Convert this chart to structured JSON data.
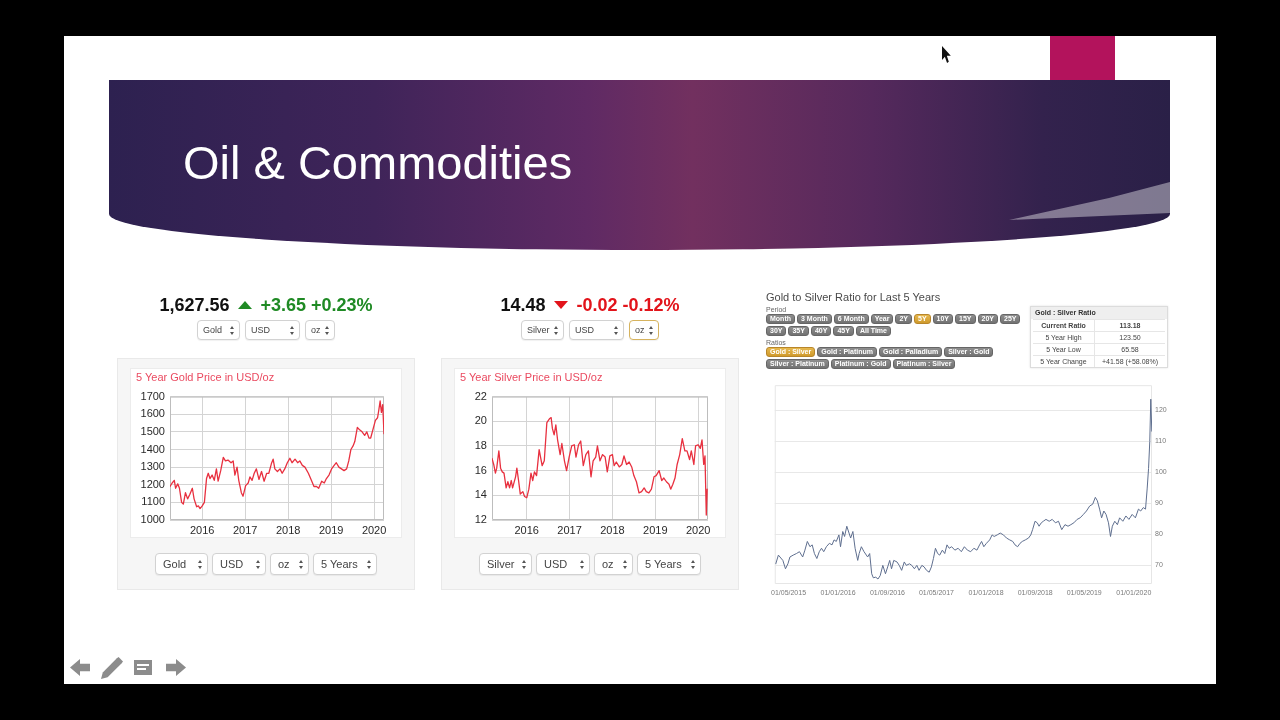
{
  "chart_data": [
    {
      "type": "other",
      "title": "Oil & Commodities"
    },
    {
      "type": "line",
      "title": "5 Year Gold Price in USD/oz",
      "annotations": [
        "1,627.56",
        "+3.65 +0.23%",
        "Gold",
        "USD",
        "oz",
        "Gold",
        "USD",
        "oz",
        "5 Years"
      ],
      "x": [
        2015.25,
        2015.3,
        2015.35,
        2015.38,
        2015.43,
        2015.47,
        2015.52,
        2015.56,
        2015.61,
        2015.66,
        2015.71,
        2015.77,
        2015.81,
        2015.87,
        2015.91,
        2015.95,
        2016.0,
        2016.05,
        2016.1,
        2016.14,
        2016.18,
        2016.23,
        2016.28,
        2016.33,
        2016.37,
        2016.43,
        2016.49,
        2016.54,
        2016.6,
        2016.67,
        2016.72,
        2016.76,
        2016.81,
        2016.85,
        2016.91,
        2016.95,
        2017.01,
        2017.07,
        2017.11,
        2017.16,
        2017.21,
        2017.26,
        2017.32,
        2017.38,
        2017.44,
        2017.5,
        2017.55,
        2017.61,
        2017.65,
        2017.69,
        2017.75,
        2017.81,
        2017.86,
        2017.92,
        2017.98,
        2018.04,
        2018.09,
        2018.16,
        2018.22,
        2018.27,
        2018.33,
        2018.39,
        2018.47,
        2018.54,
        2018.6,
        2018.66,
        2018.71,
        2018.78,
        2018.84,
        2018.89,
        2018.95,
        2019.01,
        2019.07,
        2019.12,
        2019.18,
        2019.24,
        2019.3,
        2019.36,
        2019.41,
        2019.46,
        2019.51,
        2019.55,
        2019.61,
        2019.67,
        2019.72,
        2019.78,
        2019.83,
        2019.88,
        2019.92,
        2019.98,
        2020.03,
        2020.08,
        2020.11,
        2020.14,
        2020.17,
        2020.2,
        2020.23
      ],
      "series": [
        {
          "color": "#e8303f",
          "values": [
            1190,
            1210,
            1225,
            1180,
            1205,
            1180,
            1100,
            1090,
            1155,
            1120,
            1145,
            1180,
            1120,
            1075,
            1080,
            1065,
            1080,
            1100,
            1235,
            1265,
            1235,
            1255,
            1225,
            1290,
            1220,
            1280,
            1355,
            1335,
            1340,
            1325,
            1335,
            1255,
            1300,
            1225,
            1155,
            1135,
            1195,
            1210,
            1245,
            1225,
            1265,
            1290,
            1230,
            1275,
            1220,
            1265,
            1265,
            1320,
            1345,
            1290,
            1275,
            1290,
            1265,
            1290,
            1325,
            1350,
            1325,
            1345,
            1325,
            1335,
            1310,
            1300,
            1265,
            1225,
            1190,
            1190,
            1180,
            1220,
            1210,
            1235,
            1255,
            1290,
            1310,
            1325,
            1300,
            1290,
            1280,
            1290,
            1335,
            1400,
            1420,
            1445,
            1525,
            1510,
            1500,
            1480,
            1500,
            1465,
            1465,
            1520,
            1565,
            1580,
            1625,
            1675,
            1610,
            1655,
            1490
          ]
        }
      ],
      "xlim": [
        2015.25,
        2020.23
      ],
      "xticks": [
        2016,
        2017,
        2018,
        2019,
        2020
      ],
      "ylim": [
        1000,
        1700
      ],
      "yticks": [
        1000,
        1100,
        1200,
        1300,
        1400,
        1500,
        1600,
        1700
      ],
      "grid": true
    },
    {
      "type": "line",
      "title": "5 Year Silver Price in USD/oz",
      "annotations": [
        "14.48",
        "-0.02 -0.12%",
        "Silver",
        "USD",
        "oz",
        "Silver",
        "USD",
        "oz",
        "5 Years"
      ],
      "x": [
        2015.19,
        2015.23,
        2015.27,
        2015.3,
        2015.35,
        2015.39,
        2015.43,
        2015.47,
        2015.52,
        2015.56,
        2015.6,
        2015.64,
        2015.67,
        2015.74,
        2015.77,
        2015.81,
        2015.85,
        2015.91,
        2015.95,
        2016.0,
        2016.05,
        2016.1,
        2016.14,
        2016.18,
        2016.23,
        2016.29,
        2016.36,
        2016.41,
        2016.47,
        2016.53,
        2016.57,
        2016.6,
        2016.64,
        2016.68,
        2016.72,
        2016.78,
        2016.82,
        2016.88,
        2016.93,
        2016.99,
        2017.05,
        2017.11,
        2017.15,
        2017.21,
        2017.26,
        2017.32,
        2017.38,
        2017.44,
        2017.5,
        2017.55,
        2017.61,
        2017.65,
        2017.71,
        2017.77,
        2017.83,
        2017.88,
        2017.94,
        2018.0,
        2018.04,
        2018.09,
        2018.16,
        2018.22,
        2018.27,
        2018.33,
        2018.39,
        2018.45,
        2018.5,
        2018.56,
        2018.62,
        2018.68,
        2018.74,
        2018.79,
        2018.85,
        2018.91,
        2018.97,
        2019.02,
        2019.09,
        2019.15,
        2019.2,
        2019.26,
        2019.32,
        2019.36,
        2019.41,
        2019.46,
        2019.51,
        2019.57,
        2019.63,
        2019.69,
        2019.74,
        2019.8,
        2019.84,
        2019.9,
        2019.94,
        2020.0,
        2020.05,
        2020.09,
        2020.13,
        2020.16,
        2020.19,
        2020.21
      ],
      "series": [
        {
          "color": "#e8303f",
          "values": [
            17.0,
            16.5,
            15.8,
            16.2,
            17.6,
            16.2,
            15.9,
            15.8,
            14.6,
            15.1,
            14.6,
            15.2,
            14.6,
            15.5,
            16.2,
            15.2,
            14.1,
            14.3,
            13.9,
            13.8,
            14.5,
            15.8,
            15.2,
            15.9,
            15.6,
            17.7,
            16.4,
            16.8,
            19.9,
            20.2,
            20.3,
            19.4,
            18.9,
            19.7,
            18.5,
            17.3,
            18.2,
            16.8,
            16.0,
            17.1,
            18.0,
            18.1,
            17.1,
            18.1,
            18.4,
            16.4,
            17.3,
            17.6,
            15.5,
            16.8,
            17.1,
            18.0,
            16.8,
            17.3,
            17.1,
            15.9,
            17.2,
            17.3,
            16.4,
            16.7,
            16.3,
            16.5,
            17.2,
            16.5,
            16.7,
            16.3,
            15.6,
            15.1,
            14.2,
            14.3,
            14.6,
            14.3,
            14.2,
            14.5,
            15.5,
            15.6,
            16.0,
            15.2,
            15.4,
            15.1,
            14.9,
            14.5,
            14.9,
            15.4,
            16.5,
            17.3,
            18.6,
            17.6,
            17.6,
            16.9,
            17.6,
            16.5,
            18.0,
            18.1,
            17.8,
            18.5,
            16.5,
            17.2,
            12.4,
            14.5
          ]
        }
      ],
      "xlim": [
        2015.19,
        2020.23
      ],
      "xticks": [
        2016,
        2017,
        2018,
        2019,
        2020
      ],
      "ylim": [
        12,
        22
      ],
      "yticks": [
        12,
        14,
        16,
        18,
        20,
        22
      ],
      "grid": true
    },
    {
      "type": "line",
      "title": "Gold to Silver Ratio for Last 5 Years",
      "annotations": [
        "Period",
        "Month",
        "3 Month",
        "6 Month",
        "Year",
        "2Y",
        "5Y",
        "10Y",
        "15Y",
        "20Y",
        "25Y",
        "30Y",
        "35Y",
        "40Y",
        "45Y",
        "All Time",
        "Ratios",
        "Gold : Silver",
        "Gold : Platinum",
        "Gold : Palladium",
        "Silver : Gold",
        "Silver : Platinum",
        "Platinum : Gold",
        "Platinum : Silver"
      ],
      "x": [
        "2015-02-27",
        "2015-03-12",
        "2015-04-03",
        "2015-04-16",
        "2015-04-28",
        "2015-05-08",
        "2015-05-24",
        "2015-06-09",
        "2015-06-24",
        "2015-07-10",
        "2015-07-21",
        "2015-08-02",
        "2015-08-15",
        "2015-08-26",
        "2015-09-06",
        "2015-09-18",
        "2015-09-30",
        "2015-10-11",
        "2015-10-22",
        "2015-11-04",
        "2015-11-19",
        "2015-12-02",
        "2015-12-12",
        "2015-12-23",
        "2016-01-05",
        "2016-01-13",
        "2016-01-24",
        "2016-02-02",
        "2016-02-13",
        "2016-02-24",
        "2016-03-03",
        "2016-03-14",
        "2016-03-25",
        "2016-04-07",
        "2016-04-14",
        "2016-04-25",
        "2016-05-08",
        "2016-05-26",
        "2016-06-05",
        "2016-06-15",
        "2016-06-23",
        "2016-07-05",
        "2016-07-16",
        "2016-07-27",
        "2016-08-09",
        "2016-08-22",
        "2016-09-02",
        "2016-09-12",
        "2016-09-21",
        "2016-10-02",
        "2016-10-18",
        "2016-10-29",
        "2016-11-10",
        "2016-11-23",
        "2016-12-03",
        "2016-12-19",
        "2016-12-30",
        "2017-01-12",
        "2017-01-24",
        "2017-02-04",
        "2017-02-18",
        "2017-03-01",
        "2017-03-13",
        "2017-03-26",
        "2017-04-06",
        "2017-04-16",
        "2017-04-26",
        "2017-05-07",
        "2017-05-17",
        "2017-05-30",
        "2017-06-11",
        "2017-06-22",
        "2017-07-03",
        "2017-07-15",
        "2017-07-31",
        "2017-08-16",
        "2017-09-01",
        "2017-09-16",
        "2017-10-01",
        "2017-10-17",
        "2017-11-02",
        "2017-11-17",
        "2017-11-30",
        "2017-12-10",
        "2017-12-21",
        "2018-01-03",
        "2018-01-19",
        "2018-01-31",
        "2018-02-10",
        "2018-02-25",
        "2018-03-12",
        "2018-03-28",
        "2018-04-12",
        "2018-04-28",
        "2018-05-13",
        "2018-05-24",
        "2018-06-06",
        "2018-06-18",
        "2018-06-29",
        "2018-07-14",
        "2018-07-30",
        "2018-08-10",
        "2018-08-19",
        "2018-08-31",
        "2018-09-11",
        "2018-09-20",
        "2018-10-01",
        "2018-10-11",
        "2018-10-24",
        "2018-11-09",
        "2018-11-24",
        "2018-12-10",
        "2018-12-25",
        "2019-01-10",
        "2019-01-26",
        "2019-02-10",
        "2019-02-24",
        "2019-03-11",
        "2019-03-27",
        "2019-04-11",
        "2019-04-27",
        "2019-05-12",
        "2019-05-28",
        "2019-06-12",
        "2019-06-25",
        "2019-07-05",
        "2019-07-16",
        "2019-07-26",
        "2019-08-06",
        "2019-08-17",
        "2019-08-29",
        "2019-09-08",
        "2019-09-17",
        "2019-09-29",
        "2019-10-12",
        "2019-10-23",
        "2019-11-08",
        "2019-11-23",
        "2019-12-08",
        "2019-12-24",
        "2020-01-09",
        "2020-01-24",
        "2020-02-04",
        "2020-02-17",
        "2020-02-28",
        "2020-03-07",
        "2020-03-14",
        "2020-03-20",
        "2020-03-25",
        "2020-03-30"
      ],
      "series": [
        {
          "color": "#5f6f8f",
          "values": [
            70.5,
            73.3,
            71.6,
            68.9,
            70.5,
            72.7,
            73.3,
            73.8,
            74.4,
            72.7,
            74.9,
            77.7,
            76.0,
            76.6,
            73.8,
            72.2,
            74.4,
            75.5,
            74.4,
            76.0,
            77.1,
            76.6,
            78.2,
            77.7,
            79.8,
            76.0,
            80.9,
            79.3,
            82.6,
            80.4,
            78.8,
            80.9,
            75.5,
            71.6,
            73.8,
            76.0,
            74.4,
            72.7,
            73.8,
            67.3,
            66.0,
            66.2,
            65.6,
            66.7,
            70.0,
            67.3,
            69.5,
            71.6,
            68.9,
            71.6,
            71.1,
            70.0,
            68.4,
            71.1,
            70.0,
            70.5,
            70.0,
            68.9,
            70.0,
            68.4,
            70.0,
            69.5,
            68.4,
            67.8,
            69.5,
            72.2,
            75.5,
            73.8,
            73.3,
            74.9,
            73.8,
            76.6,
            75.5,
            76.0,
            74.9,
            75.5,
            74.4,
            76.0,
            74.9,
            74.4,
            75.5,
            74.9,
            76.6,
            77.7,
            76.0,
            77.1,
            78.2,
            79.8,
            79.3,
            79.8,
            80.4,
            79.8,
            78.8,
            78.2,
            77.7,
            76.6,
            76.0,
            77.1,
            77.7,
            78.2,
            78.8,
            79.8,
            81.5,
            84.2,
            83.7,
            82.6,
            83.7,
            84.2,
            84.8,
            84.2,
            84.8,
            83.7,
            84.2,
            81.5,
            83.1,
            82.6,
            83.1,
            83.7,
            84.8,
            85.3,
            86.4,
            87.5,
            89.1,
            89.7,
            91.9,
            90.8,
            88.1,
            85.3,
            87.5,
            86.4,
            83.7,
            79.3,
            82.6,
            84.2,
            83.1,
            85.3,
            84.2,
            85.9,
            84.8,
            86.4,
            85.3,
            88.1,
            87.5,
            88.6,
            88.1,
            94.6,
            101.2,
            109.9,
            123.5,
            113.2
          ]
        }
      ],
      "xlim": [
        "2015-02-22",
        "2020-03-31"
      ],
      "xticks": [
        {
          "value": "2015-05-01",
          "label": "01/05/2015"
        },
        {
          "value": "2016-01-01",
          "label": "01/01/2016"
        },
        {
          "value": "2016-09-01",
          "label": "01/09/2016"
        },
        {
          "value": "2017-05-01",
          "label": "01/05/2017"
        },
        {
          "value": "2018-01-01",
          "label": "01/01/2018"
        },
        {
          "value": "2018-09-01",
          "label": "01/09/2018"
        },
        {
          "value": "2019-05-01",
          "label": "01/05/2019"
        },
        {
          "value": "2020-01-01",
          "label": "01/01/2020"
        }
      ],
      "ylim": [
        64,
        128
      ],
      "yticks": [
        70,
        80,
        90,
        100,
        110,
        120
      ],
      "grid": "y"
    },
    {
      "type": "other",
      "title": "Gold : Silver Ratio",
      "annotations": [
        "Current Ratio",
        "113.18",
        "5 Year High",
        "123.50",
        "5 Year Low",
        "65.58",
        "5 Year Change",
        "+41.58 (+58.08%)"
      ]
    }
  ]
}
